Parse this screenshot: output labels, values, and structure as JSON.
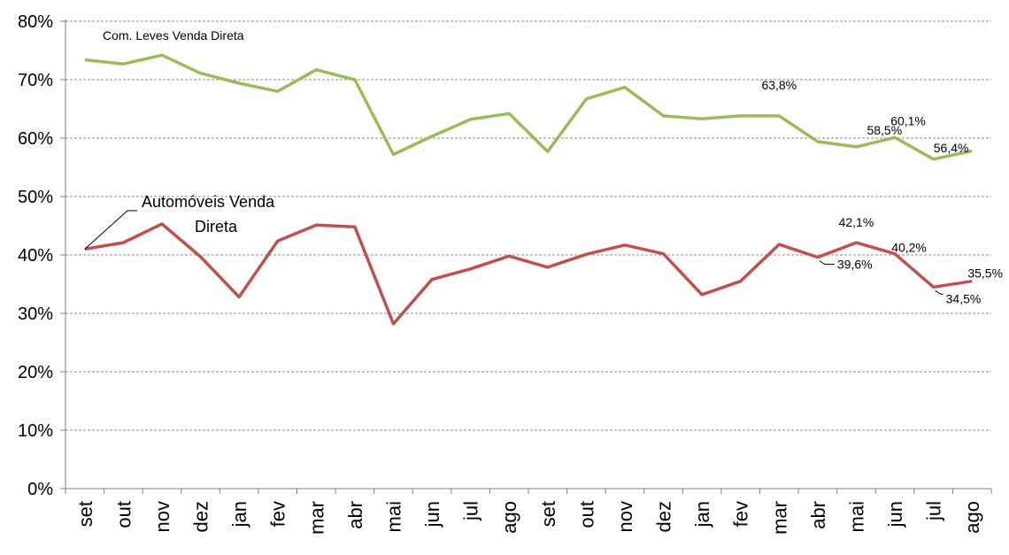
{
  "chart_data": {
    "type": "line",
    "title": "",
    "xlabel": "",
    "ylabel": "",
    "ylim": [
      0,
      80
    ],
    "y_tick_format": "percent",
    "y_ticks": [
      "0%",
      "10%",
      "20%",
      "30%",
      "40%",
      "50%",
      "60%",
      "70%",
      "80%"
    ],
    "grid": "horizontal dashed",
    "categories": [
      "set",
      "out",
      "nov",
      "dez",
      "jan",
      "fev",
      "mar",
      "abr",
      "mai",
      "jun",
      "jul",
      "ago",
      "set",
      "out",
      "nov",
      "dez",
      "jan",
      "fev",
      "mar",
      "abr",
      "mai",
      "jun",
      "jul",
      "ago"
    ],
    "series": [
      {
        "name": "Com. Leves Venda Direta",
        "color": "#9bbb59",
        "values": [
          73.4,
          72.7,
          74.2,
          71.1,
          69.4,
          68.0,
          71.7,
          70.0,
          57.2,
          60.3,
          63.2,
          64.2,
          57.7,
          66.7,
          68.7,
          63.8,
          63.3,
          63.8,
          63.8,
          59.4,
          58.5,
          60.1,
          56.4,
          57.8
        ],
        "data_labels": [
          {
            "index": 18,
            "text": "63,8%"
          },
          {
            "index": 20,
            "text": "58,5%"
          },
          {
            "index": 21,
            "text": "60,1%"
          },
          {
            "index": 22,
            "text": "56,4%"
          }
        ]
      },
      {
        "name": "Automóveis Venda Direta",
        "color": "#c0504d",
        "values": [
          41.0,
          42.1,
          45.3,
          39.7,
          32.8,
          42.4,
          45.1,
          44.8,
          28.2,
          35.8,
          37.6,
          39.8,
          37.9,
          40.1,
          41.7,
          40.2,
          33.2,
          35.5,
          41.8,
          39.6,
          42.1,
          40.2,
          34.5,
          35.5
        ],
        "data_labels": [
          {
            "index": 19,
            "text": "39,6%"
          },
          {
            "index": 20,
            "text": "42,1%"
          },
          {
            "index": 21,
            "text": "40,2%"
          },
          {
            "index": 22,
            "text": "34,5%"
          },
          {
            "index": 23,
            "text": "35,5%"
          }
        ]
      }
    ]
  }
}
